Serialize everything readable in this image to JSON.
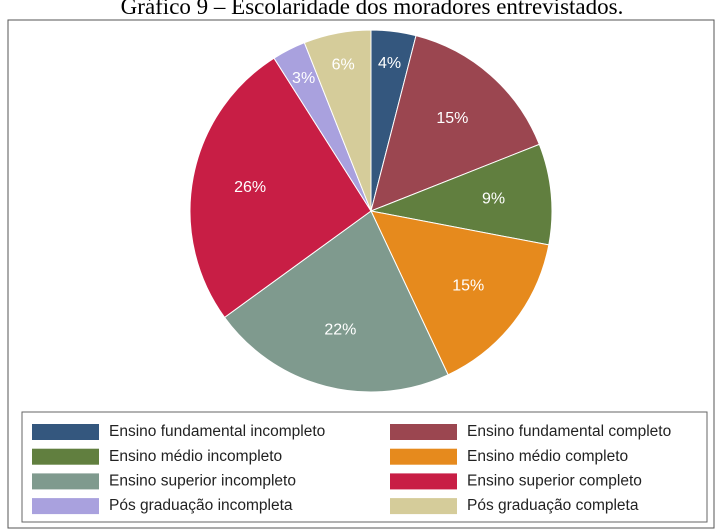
{
  "chart_data": {
    "type": "pie",
    "title": "Gráfico 9 – Escolaridade dos moradores entrevistados.",
    "categories": [
      "Ensino fundamental incompleto",
      "Ensino fundamental completo",
      "Ensino médio incompleto",
      "Ensino médio completo",
      "Ensino superior incompleto",
      "Ensino superior completo",
      "Pós graduação incompleta",
      "Pós graduação completa"
    ],
    "values": [
      4,
      15,
      9,
      15,
      22,
      26,
      3,
      6
    ],
    "value_labels": [
      "4%",
      "15%",
      "9%",
      "15%",
      "22%",
      "26%",
      "3%",
      "6%"
    ],
    "colors": [
      "#34577e",
      "#9b4650",
      "#617f3f",
      "#e68a1d",
      "#7f9a8e",
      "#c81e45",
      "#a9a1de",
      "#d5cc9a"
    ]
  }
}
